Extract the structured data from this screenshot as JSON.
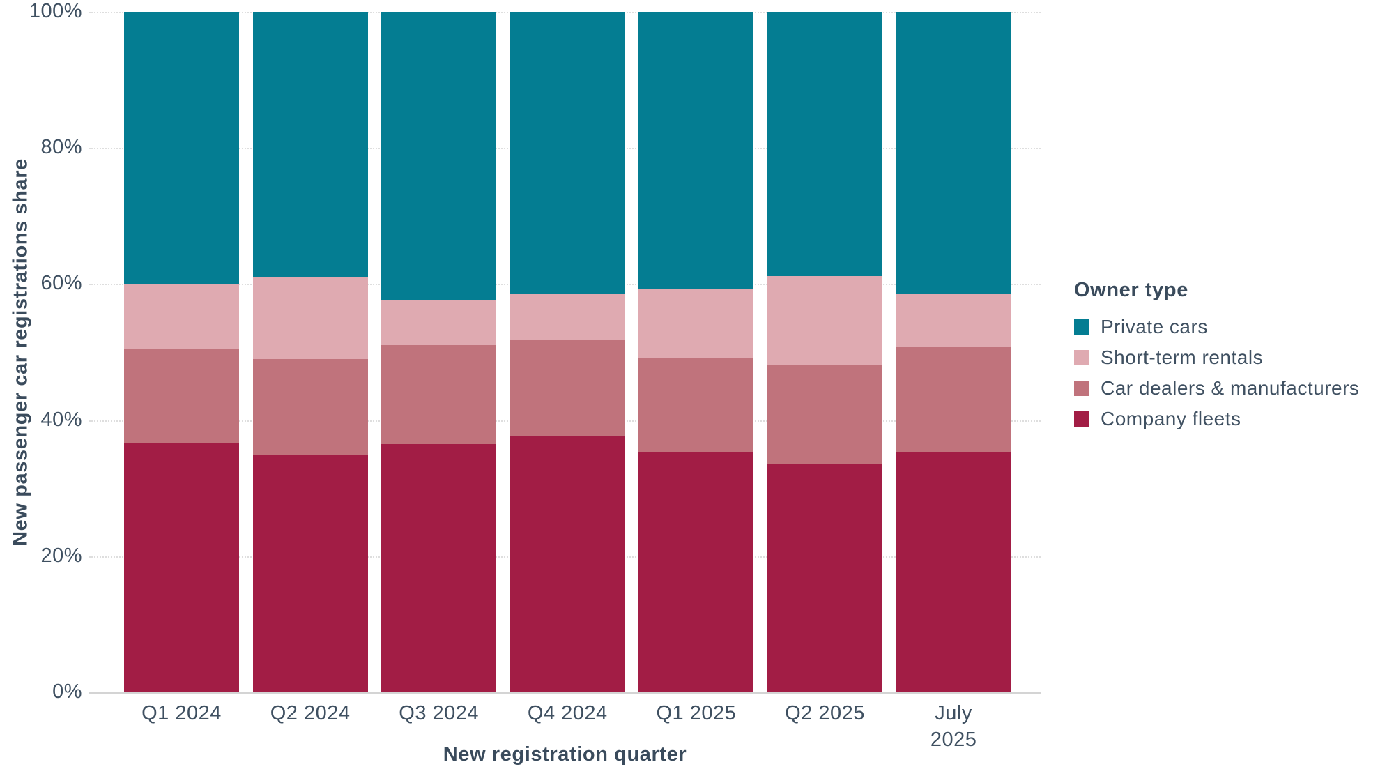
{
  "chart_data": {
    "type": "bar",
    "stacked": true,
    "normalized_100pct": true,
    "xlabel": "New registration quarter",
    "ylabel": "New passenger car registrations share",
    "categories": [
      "Q1 2024",
      "Q2 2024",
      "Q3 2024",
      "Q4 2024",
      "Q1 2025",
      "Q2 2025",
      "July\n2025"
    ],
    "series": [
      {
        "name": "Company fleets",
        "color": "#A21D45",
        "values": [
          36.6,
          34.9,
          36.5,
          37.6,
          35.2,
          33.6,
          35.3
        ]
      },
      {
        "name": "Car dealers & manufacturers",
        "color": "#C0737C",
        "values": [
          13.8,
          14.1,
          14.5,
          14.2,
          13.9,
          14.6,
          15.4
        ]
      },
      {
        "name": "Short-term rentals",
        "color": "#DFAAB1",
        "values": [
          9.6,
          12.0,
          6.6,
          6.7,
          10.2,
          13.0,
          7.9
        ]
      },
      {
        "name": "Private cars",
        "color": "#047D92",
        "values": [
          40.0,
          39.0,
          42.4,
          41.5,
          40.7,
          38.8,
          41.4
        ]
      }
    ],
    "legend": {
      "title": "Owner type",
      "position": "right",
      "order_top_to_bottom": [
        "Private cars",
        "Short-term rentals",
        "Car dealers & manufacturers",
        "Company fleets"
      ]
    },
    "y_ticks": [
      "0%",
      "20%",
      "40%",
      "60%",
      "80%",
      "100%"
    ],
    "ylim": [
      0,
      100
    ],
    "grid": true
  },
  "colors": {
    "background": "#FFFFFF",
    "text": "#3F5061",
    "gridline": "#DEDEDE",
    "axis_line": "#D4D4D4"
  }
}
